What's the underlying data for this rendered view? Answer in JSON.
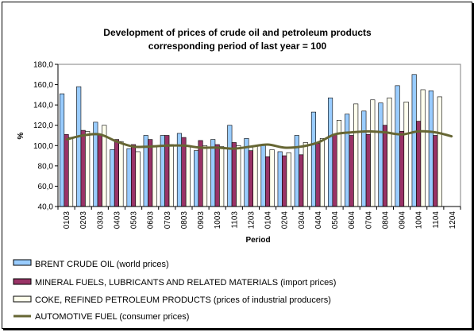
{
  "chart_data": {
    "type": "bar",
    "title": "Development of prices of crude oil and petroleum products",
    "subtitle": "corresponding period of last year = 100",
    "xlabel": "Period",
    "ylabel": "%",
    "ylim": [
      40,
      180
    ],
    "yticks": [
      "40,0",
      "60,0",
      "80,0",
      "100,0",
      "120,0",
      "140,0",
      "160,0",
      "180,0"
    ],
    "ytick_values": [
      40,
      60,
      80,
      100,
      120,
      140,
      160,
      180
    ],
    "grid": false,
    "legend_position": "bottom",
    "categories": [
      "0103",
      "0203",
      "0303",
      "0403",
      "0503",
      "0603",
      "0703",
      "0803",
      "0903",
      "1003",
      "1103",
      "1203",
      "0104",
      "0204",
      "0304",
      "0404",
      "0504",
      "0604",
      "0704",
      "0804",
      "0904",
      "1004",
      "1104",
      "1204"
    ],
    "series": [
      {
        "name": "BRENT CRUDE OIL (world prices)",
        "kind": "bar",
        "color": "#99ccff",
        "values": [
          151,
          158,
          123,
          96,
          97,
          110,
          110,
          112,
          95,
          106,
          120,
          107,
          100,
          94,
          110,
          133,
          147,
          131,
          134,
          142,
          159,
          170,
          154,
          null
        ]
      },
      {
        "name": "MINERAL FUELS, LUBRICANTS AND RELATED MATERIALS (import prices)",
        "kind": "bar",
        "color": "#993366",
        "values": [
          111,
          115,
          111,
          106,
          101,
          106,
          110,
          108,
          105,
          101,
          103,
          95,
          89,
          90,
          91,
          102,
          111,
          110,
          111,
          120,
          114,
          124,
          110,
          null
        ]
      },
      {
        "name": "COKE, REFINED PETROLEUM PRODUCTS (prices of industrial producers)",
        "kind": "bar",
        "color": "#ffffee",
        "values": [
          108,
          114,
          120,
          104,
          94,
          100,
          101,
          100,
          100,
          99,
          100,
          100,
          96,
          93,
          103,
          107,
          125,
          141,
          145,
          147,
          143,
          155,
          148,
          null
        ]
      },
      {
        "name": "AUTOMOTIVE FUEL (consumer prices)",
        "kind": "line",
        "color": "#666633",
        "values": [
          106,
          110,
          111,
          104,
          99,
          99,
          100,
          100,
          98,
          98,
          97,
          99,
          101,
          98,
          99,
          103,
          111,
          113,
          114,
          113,
          111,
          114,
          113,
          109
        ]
      }
    ]
  }
}
